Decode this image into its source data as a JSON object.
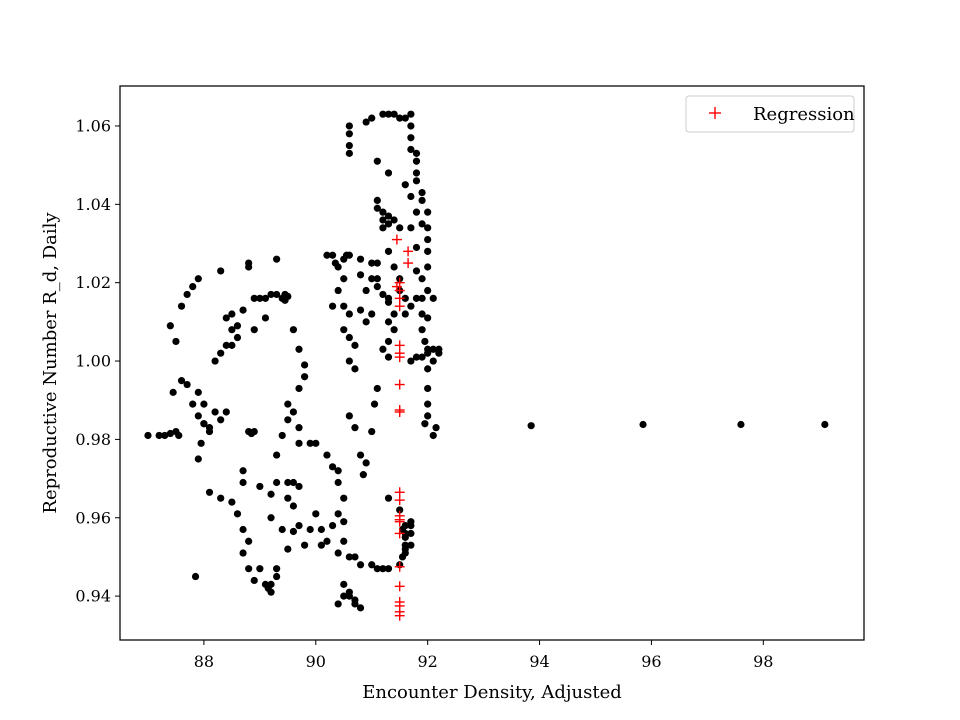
{
  "chart_data": {
    "type": "scatter",
    "title": "",
    "xlabel": "Encounter Density, Adjusted",
    "ylabel": "Reproductive Number R_d, Daily",
    "xlim": [
      86.5,
      99.8
    ],
    "ylim": [
      0.9288,
      1.0702
    ],
    "xticks": [
      88,
      90,
      92,
      94,
      96,
      98
    ],
    "yticks": [
      0.94,
      0.96,
      0.98,
      1.0,
      1.02,
      1.04,
      1.06
    ],
    "xtick_labels": [
      "88",
      "90",
      "92",
      "94",
      "96",
      "98"
    ],
    "ytick_labels": [
      "0.94",
      "0.96",
      "0.98",
      "1.00",
      "1.02",
      "1.04",
      "1.06"
    ],
    "grid": false,
    "legend": {
      "position": "top-right",
      "entries": [
        "Regression"
      ]
    },
    "series": [
      {
        "marker": "circle",
        "color": "#000000",
        "points": [
          [
            87.0,
            0.981
          ],
          [
            87.2,
            0.981
          ],
          [
            87.3,
            0.981
          ],
          [
            87.4,
            0.9815
          ],
          [
            87.5,
            0.982
          ],
          [
            87.55,
            0.981
          ],
          [
            87.4,
            1.009
          ],
          [
            87.5,
            1.005
          ],
          [
            87.6,
            1.014
          ],
          [
            87.7,
            1.017
          ],
          [
            87.8,
            1.019
          ],
          [
            87.9,
            1.021
          ],
          [
            87.45,
            0.992
          ],
          [
            87.6,
            0.995
          ],
          [
            87.7,
            0.994
          ],
          [
            87.8,
            0.989
          ],
          [
            87.9,
            0.992
          ],
          [
            88.0,
            0.989
          ],
          [
            87.9,
            0.986
          ],
          [
            88.0,
            0.984
          ],
          [
            88.1,
            0.983
          ],
          [
            87.95,
            0.979
          ],
          [
            87.9,
            0.975
          ],
          [
            88.0,
            0.984
          ],
          [
            88.1,
            0.982
          ],
          [
            88.2,
            0.987
          ],
          [
            88.3,
            0.985
          ],
          [
            88.4,
            0.987
          ],
          [
            88.3,
            1.023
          ],
          [
            88.2,
            1.0
          ],
          [
            88.3,
            1.002
          ],
          [
            88.4,
            1.004
          ],
          [
            88.5,
            1.008
          ],
          [
            88.4,
            1.011
          ],
          [
            88.5,
            1.012
          ],
          [
            88.6,
            1.009
          ],
          [
            88.7,
            1.013
          ],
          [
            88.6,
            1.006
          ],
          [
            88.5,
            1.004
          ],
          [
            88.8,
            1.025
          ],
          [
            88.8,
            1.024
          ],
          [
            88.9,
            1.016
          ],
          [
            89.0,
            1.016
          ],
          [
            89.1,
            1.016
          ],
          [
            89.2,
            1.017
          ],
          [
            89.3,
            1.017
          ],
          [
            89.4,
            1.016
          ],
          [
            89.45,
            1.017
          ],
          [
            89.5,
            1.0165
          ],
          [
            89.45,
            1.0155
          ],
          [
            89.3,
            1.026
          ],
          [
            88.9,
            1.008
          ],
          [
            89.1,
            1.011
          ],
          [
            89.6,
            1.008
          ],
          [
            89.7,
            1.003
          ],
          [
            89.8,
            0.999
          ],
          [
            89.8,
            0.996
          ],
          [
            89.7,
            0.993
          ],
          [
            89.5,
            0.985
          ],
          [
            89.4,
            0.981
          ],
          [
            89.3,
            0.976
          ],
          [
            89.3,
            0.969
          ],
          [
            89.2,
            0.966
          ],
          [
            89.5,
            0.989
          ],
          [
            89.6,
            0.987
          ],
          [
            89.7,
            0.983
          ],
          [
            89.7,
            0.979
          ],
          [
            89.9,
            0.979
          ],
          [
            90.0,
            0.979
          ],
          [
            90.2,
            0.976
          ],
          [
            90.3,
            0.973
          ],
          [
            90.4,
            0.972
          ],
          [
            90.4,
            0.969
          ],
          [
            90.5,
            0.965
          ],
          [
            88.8,
            0.982
          ],
          [
            88.85,
            0.9815
          ],
          [
            88.9,
            0.982
          ],
          [
            88.3,
            0.965
          ],
          [
            88.5,
            0.964
          ],
          [
            88.6,
            0.961
          ],
          [
            88.7,
            0.957
          ],
          [
            88.8,
            0.954
          ],
          [
            88.7,
            0.951
          ],
          [
            88.8,
            0.947
          ],
          [
            88.9,
            0.944
          ],
          [
            89.0,
            0.947
          ],
          [
            89.1,
            0.943
          ],
          [
            89.15,
            0.942
          ],
          [
            89.2,
            0.943
          ],
          [
            89.3,
            0.947
          ],
          [
            89.3,
            0.945
          ],
          [
            89.2,
            0.941
          ],
          [
            87.85,
            0.945
          ],
          [
            88.1,
            0.9665
          ],
          [
            88.7,
            0.972
          ],
          [
            88.7,
            0.969
          ],
          [
            89.0,
            0.968
          ],
          [
            89.2,
            0.96
          ],
          [
            89.4,
            0.957
          ],
          [
            89.5,
            0.965
          ],
          [
            89.6,
            0.963
          ],
          [
            89.5,
            0.969
          ],
          [
            89.6,
            0.969
          ],
          [
            89.7,
            0.968
          ],
          [
            89.6,
            0.9565
          ],
          [
            89.7,
            0.958
          ],
          [
            89.9,
            0.957
          ],
          [
            90.0,
            0.961
          ],
          [
            90.1,
            0.957
          ],
          [
            90.1,
            0.953
          ],
          [
            90.2,
            0.954
          ],
          [
            89.8,
            0.953
          ],
          [
            89.5,
            0.952
          ],
          [
            90.3,
            0.958
          ],
          [
            90.4,
            0.961
          ],
          [
            90.5,
            0.959
          ],
          [
            90.5,
            0.954
          ],
          [
            90.4,
            0.951
          ],
          [
            90.6,
            0.95
          ],
          [
            90.7,
            0.95
          ],
          [
            90.8,
            0.948
          ],
          [
            91.0,
            0.948
          ],
          [
            91.1,
            0.947
          ],
          [
            91.2,
            0.947
          ],
          [
            91.3,
            0.947
          ],
          [
            90.4,
            0.938
          ],
          [
            90.5,
            0.94
          ],
          [
            90.6,
            0.94
          ],
          [
            90.5,
            0.943
          ],
          [
            90.6,
            0.941
          ],
          [
            90.7,
            0.938
          ],
          [
            90.8,
            0.937
          ],
          [
            90.7,
            0.939
          ],
          [
            90.2,
            1.027
          ],
          [
            90.3,
            1.027
          ],
          [
            90.35,
            1.025
          ],
          [
            90.4,
            1.024
          ],
          [
            90.5,
            1.026
          ],
          [
            90.55,
            1.027
          ],
          [
            90.6,
            1.027
          ],
          [
            90.5,
            1.021
          ],
          [
            90.4,
            1.018
          ],
          [
            90.3,
            1.014
          ],
          [
            90.5,
            1.014
          ],
          [
            90.6,
            1.012
          ],
          [
            90.5,
            1.008
          ],
          [
            90.6,
            1.006
          ],
          [
            90.7,
            1.004
          ],
          [
            90.6,
            1.0
          ],
          [
            90.7,
            0.998
          ],
          [
            90.6,
            0.986
          ],
          [
            90.7,
            0.983
          ],
          [
            90.8,
            0.976
          ],
          [
            90.9,
            0.974
          ],
          [
            90.85,
            0.971
          ],
          [
            91.0,
            0.982
          ],
          [
            91.05,
            0.989
          ],
          [
            91.1,
            0.993
          ],
          [
            90.8,
            1.013
          ],
          [
            90.9,
            1.01
          ],
          [
            91.0,
            1.012
          ],
          [
            90.8,
            1.022
          ],
          [
            90.8,
            1.026
          ],
          [
            91.0,
            1.025
          ],
          [
            91.1,
            1.025
          ],
          [
            91.1,
            1.021
          ],
          [
            91.2,
            1.017
          ],
          [
            91.3,
            1.015
          ],
          [
            91.4,
            1.012
          ],
          [
            91.3,
            1.016
          ],
          [
            91.1,
            1.019
          ],
          [
            91.0,
            1.021
          ],
          [
            90.9,
            1.018
          ],
          [
            91.3,
            1.01
          ],
          [
            91.4,
            1.008
          ],
          [
            91.3,
            1.005
          ],
          [
            91.2,
            1.003
          ],
          [
            91.3,
            1.001
          ],
          [
            90.6,
            1.06
          ],
          [
            90.6,
            1.058
          ],
          [
            90.6,
            1.055
          ],
          [
            90.6,
            1.053
          ],
          [
            90.9,
            1.061
          ],
          [
            91.0,
            1.062
          ],
          [
            91.2,
            1.063
          ],
          [
            91.3,
            1.063
          ],
          [
            91.4,
            1.063
          ],
          [
            91.5,
            1.062
          ],
          [
            91.6,
            1.062
          ],
          [
            91.7,
            1.063
          ],
          [
            91.7,
            1.06
          ],
          [
            91.7,
            1.057
          ],
          [
            91.7,
            1.054
          ],
          [
            91.8,
            1.053
          ],
          [
            91.8,
            1.051
          ],
          [
            91.8,
            1.048
          ],
          [
            91.8,
            1.046
          ],
          [
            91.9,
            1.043
          ],
          [
            91.9,
            1.041
          ],
          [
            91.8,
            1.038
          ],
          [
            91.7,
            1.034
          ],
          [
            91.1,
            1.041
          ],
          [
            91.1,
            1.039
          ],
          [
            91.2,
            1.038
          ],
          [
            91.3,
            1.037
          ],
          [
            91.4,
            1.036
          ],
          [
            91.5,
            1.034
          ],
          [
            91.2,
            1.036
          ],
          [
            91.3,
            1.035
          ],
          [
            91.2,
            1.034
          ],
          [
            91.3,
            1.028
          ],
          [
            91.4,
            1.024
          ],
          [
            91.5,
            1.021
          ],
          [
            91.5,
            1.018
          ],
          [
            91.6,
            1.016
          ],
          [
            91.6,
            1.012
          ],
          [
            91.7,
            1.014
          ],
          [
            91.8,
            1.016
          ],
          [
            91.9,
            1.016
          ],
          [
            91.9,
            1.012
          ],
          [
            92.0,
            1.011
          ],
          [
            91.9,
            1.008
          ],
          [
            91.95,
            1.005
          ],
          [
            92.0,
            1.003
          ],
          [
            91.7,
            1.0
          ],
          [
            91.8,
            1.001
          ],
          [
            91.9,
            1.001
          ],
          [
            92.0,
            1.002
          ],
          [
            92.1,
            1.003
          ],
          [
            92.2,
            1.003
          ],
          [
            92.2,
            1.002
          ],
          [
            92.1,
            1.0
          ],
          [
            92.0,
            0.998
          ],
          [
            92.0,
            0.993
          ],
          [
            92.0,
            0.989
          ],
          [
            92.0,
            0.986
          ],
          [
            91.95,
            0.984
          ],
          [
            92.1,
            0.981
          ],
          [
            92.15,
            0.983
          ],
          [
            91.8,
            1.023
          ],
          [
            91.9,
            1.021
          ],
          [
            92.0,
            1.018
          ],
          [
            92.1,
            1.016
          ],
          [
            92.0,
            1.024
          ],
          [
            92.0,
            1.028
          ],
          [
            92.0,
            1.031
          ],
          [
            92.0,
            1.034
          ],
          [
            92.0,
            1.038
          ],
          [
            91.9,
            1.035
          ],
          [
            91.8,
            1.029
          ],
          [
            91.1,
            1.051
          ],
          [
            91.3,
            1.048
          ],
          [
            91.6,
            1.045
          ],
          [
            91.7,
            1.042
          ],
          [
            91.3,
            0.965
          ],
          [
            91.5,
            0.962
          ],
          [
            91.6,
            0.958
          ],
          [
            91.6,
            0.956
          ],
          [
            91.6,
            0.955
          ],
          [
            91.6,
            0.953
          ],
          [
            91.55,
            0.95
          ],
          [
            91.5,
            0.948
          ],
          [
            91.55,
            0.957
          ],
          [
            91.7,
            0.959
          ],
          [
            91.7,
            0.956
          ],
          [
            91.6,
            0.952
          ],
          [
            91.7,
            0.953
          ],
          [
            91.7,
            0.958
          ],
          [
            91.6,
            0.951
          ],
          [
            93.85,
            0.9835
          ],
          [
            95.85,
            0.9838
          ],
          [
            97.6,
            0.9838
          ],
          [
            99.1,
            0.9838
          ]
        ]
      },
      {
        "name": "Regression",
        "marker": "plus",
        "color": "#ff0000",
        "points": [
          [
            91.45,
            1.031
          ],
          [
            91.65,
            1.025
          ],
          [
            91.65,
            1.028
          ],
          [
            91.5,
            1.02
          ],
          [
            91.5,
            1.018
          ],
          [
            91.5,
            1.016
          ],
          [
            91.5,
            1.014
          ],
          [
            91.45,
            1.019
          ],
          [
            91.5,
            1.004
          ],
          [
            91.5,
            1.002
          ],
          [
            91.5,
            1.001
          ],
          [
            91.5,
            0.994
          ],
          [
            91.5,
            0.9875
          ],
          [
            91.5,
            0.987
          ],
          [
            91.5,
            0.9665
          ],
          [
            91.5,
            0.9645
          ],
          [
            91.5,
            0.9605
          ],
          [
            91.5,
            0.959
          ],
          [
            91.5,
            0.9595
          ],
          [
            91.5,
            0.956
          ],
          [
            91.5,
            0.9475
          ],
          [
            91.5,
            0.9425
          ],
          [
            91.5,
            0.9385
          ],
          [
            91.5,
            0.9375
          ],
          [
            91.5,
            0.936
          ],
          [
            91.5,
            0.935
          ]
        ]
      }
    ]
  }
}
